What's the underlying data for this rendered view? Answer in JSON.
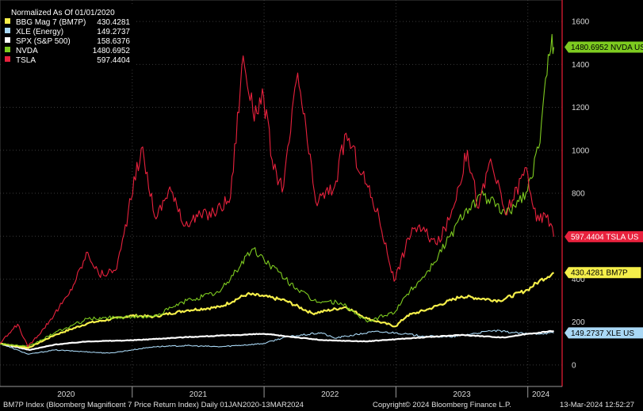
{
  "chart_data": {
    "type": "line",
    "title": "Normalized As Of 01/01/2020",
    "ylim": [
      -100,
      1700
    ],
    "y_ticks": [
      0,
      200,
      400,
      600,
      800,
      1000,
      1200,
      1400,
      1600
    ],
    "x_ticks": [
      "2020",
      "2021",
      "2022",
      "2023",
      "2024"
    ],
    "grid": true,
    "legend_position": "top-left",
    "series": [
      {
        "name": "BBG Mag 7 (BM7P)",
        "legend_value": "430.4281",
        "tag": "430.4281  BM7P",
        "color": "#f5ef4a",
        "points": [
          [
            "2020-01-01",
            100
          ],
          [
            "2020-03-20",
            80
          ],
          [
            "2020-06-01",
            140
          ],
          [
            "2020-09-01",
            195
          ],
          [
            "2020-12-31",
            230
          ],
          [
            "2021-03-01",
            225
          ],
          [
            "2021-06-01",
            255
          ],
          [
            "2021-09-01",
            270
          ],
          [
            "2021-11-15",
            330
          ],
          [
            "2021-12-31",
            320
          ],
          [
            "2022-03-01",
            300
          ],
          [
            "2022-05-15",
            240
          ],
          [
            "2022-08-15",
            270
          ],
          [
            "2022-10-15",
            215
          ],
          [
            "2022-12-31",
            180
          ],
          [
            "2023-02-01",
            230
          ],
          [
            "2023-04-01",
            260
          ],
          [
            "2023-07-01",
            320
          ],
          [
            "2023-10-15",
            300
          ],
          [
            "2023-12-31",
            350
          ],
          [
            "2024-02-01",
            390
          ],
          [
            "2024-03-13",
            430.4281
          ]
        ]
      },
      {
        "name": "XLE (Energy)",
        "legend_value": "149.2737",
        "tag": "149.2737  XLE US",
        "color": "#a9d8f5",
        "points": [
          [
            "2020-01-01",
            100
          ],
          [
            "2020-03-20",
            50
          ],
          [
            "2020-06-01",
            70
          ],
          [
            "2020-10-30",
            55
          ],
          [
            "2020-12-31",
            70
          ],
          [
            "2021-03-01",
            85
          ],
          [
            "2021-06-01",
            90
          ],
          [
            "2021-09-01",
            85
          ],
          [
            "2021-12-31",
            100
          ],
          [
            "2022-03-01",
            130
          ],
          [
            "2022-06-08",
            150
          ],
          [
            "2022-07-15",
            125
          ],
          [
            "2022-11-01",
            155
          ],
          [
            "2022-12-31",
            150
          ],
          [
            "2023-03-15",
            135
          ],
          [
            "2023-06-01",
            130
          ],
          [
            "2023-09-27",
            160
          ],
          [
            "2023-12-31",
            145
          ],
          [
            "2024-03-13",
            149.2737
          ]
        ]
      },
      {
        "name": "SPX (S&P 500)",
        "legend_value": "158.6376",
        "tag": "",
        "color": "#ffffff",
        "points": [
          [
            "2020-01-01",
            100
          ],
          [
            "2020-03-23",
            70
          ],
          [
            "2020-06-01",
            95
          ],
          [
            "2020-09-01",
            110
          ],
          [
            "2020-12-31",
            115
          ],
          [
            "2021-06-01",
            130
          ],
          [
            "2021-12-31",
            145
          ],
          [
            "2022-06-15",
            115
          ],
          [
            "2022-10-12",
            110
          ],
          [
            "2022-12-31",
            120
          ],
          [
            "2023-07-01",
            140
          ],
          [
            "2023-10-27",
            128
          ],
          [
            "2023-12-31",
            145
          ],
          [
            "2024-03-13",
            158.6376
          ]
        ]
      },
      {
        "name": "NVDA",
        "legend_value": "1480.6952",
        "tag": "1480.6952  NVDA US",
        "color": "#7ecb20",
        "points": [
          [
            "2020-01-01",
            100
          ],
          [
            "2020-03-20",
            85
          ],
          [
            "2020-06-01",
            150
          ],
          [
            "2020-09-01",
            215
          ],
          [
            "2020-12-31",
            225
          ],
          [
            "2021-03-01",
            225
          ],
          [
            "2021-06-01",
            300
          ],
          [
            "2021-09-01",
            340
          ],
          [
            "2021-11-29",
            540
          ],
          [
            "2021-12-31",
            495
          ],
          [
            "2022-03-01",
            400
          ],
          [
            "2022-05-15",
            300
          ],
          [
            "2022-08-01",
            290
          ],
          [
            "2022-10-14",
            200
          ],
          [
            "2022-12-31",
            250
          ],
          [
            "2023-02-01",
            330
          ],
          [
            "2023-04-01",
            440
          ],
          [
            "2023-05-31",
            600
          ],
          [
            "2023-07-15",
            730
          ],
          [
            "2023-09-01",
            790
          ],
          [
            "2023-11-01",
            700
          ],
          [
            "2023-12-31",
            810
          ],
          [
            "2024-01-31",
            1010
          ],
          [
            "2024-02-23",
            1350
          ],
          [
            "2024-03-08",
            1540
          ],
          [
            "2024-03-13",
            1480.6952
          ]
        ]
      },
      {
        "name": "TSLA",
        "legend_value": "597.4404",
        "tag": "597.4404  TSLA US",
        "color": "#e8213d",
        "points": [
          [
            "2020-01-01",
            100
          ],
          [
            "2020-02-19",
            190
          ],
          [
            "2020-03-18",
            85
          ],
          [
            "2020-05-01",
            170
          ],
          [
            "2020-07-10",
            330
          ],
          [
            "2020-08-31",
            525
          ],
          [
            "2020-10-01",
            420
          ],
          [
            "2020-11-15",
            440
          ],
          [
            "2020-12-01",
            540
          ],
          [
            "2021-01-26",
            1010
          ],
          [
            "2021-03-08",
            680
          ],
          [
            "2021-04-15",
            830
          ],
          [
            "2021-05-20",
            660
          ],
          [
            "2021-07-01",
            690
          ],
          [
            "2021-08-15",
            710
          ],
          [
            "2021-09-30",
            780
          ],
          [
            "2021-11-04",
            1440
          ],
          [
            "2021-12-01",
            1180
          ],
          [
            "2021-12-31",
            1250
          ],
          [
            "2022-01-27",
            910
          ],
          [
            "2022-02-24",
            830
          ],
          [
            "2022-04-04",
            1360
          ],
          [
            "2022-05-24",
            760
          ],
          [
            "2022-07-15",
            830
          ],
          [
            "2022-08-16",
            1080
          ],
          [
            "2022-09-30",
            890
          ],
          [
            "2022-11-15",
            690
          ],
          [
            "2022-12-27",
            390
          ],
          [
            "2023-02-15",
            640
          ],
          [
            "2023-03-15",
            630
          ],
          [
            "2023-04-25",
            560
          ],
          [
            "2023-06-01",
            690
          ],
          [
            "2023-07-18",
            1000
          ],
          [
            "2023-08-18",
            730
          ],
          [
            "2023-09-20",
            960
          ],
          [
            "2023-10-31",
            700
          ],
          [
            "2023-12-28",
            920
          ],
          [
            "2024-01-25",
            670
          ],
          [
            "2024-02-25",
            700
          ],
          [
            "2024-03-13",
            597.4404
          ]
        ]
      }
    ]
  },
  "footer": {
    "left": "BM7P Index (Bloomberg Magnificent 7 Price Return Index)  Daily 01JAN2020-13MAR2024",
    "center": "Copyright© 2024 Bloomberg Finance L.P.",
    "right": "13-Mar-2024 12:52:27"
  }
}
